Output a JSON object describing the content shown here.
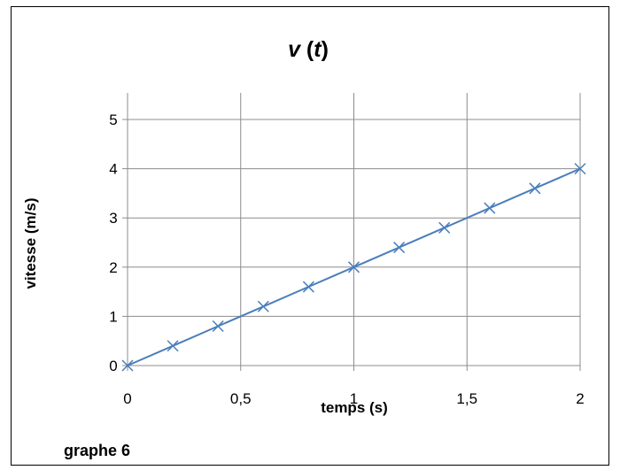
{
  "chart_data": {
    "type": "line",
    "title": "v (t)",
    "title_parts": [
      "v",
      " (",
      "t",
      ")"
    ],
    "xlabel": "temps (s)",
    "ylabel": "vitesse (m/s)",
    "xlim": [
      0,
      2
    ],
    "ylim": [
      0,
      5
    ],
    "x_ticks": [
      0,
      0.5,
      1,
      1.5,
      2
    ],
    "x_tick_labels": [
      "0",
      "0,5",
      "1",
      "1,5",
      "2"
    ],
    "y_ticks": [
      0,
      1,
      2,
      3,
      4,
      5
    ],
    "y_tick_labels": [
      "0",
      "1",
      "2",
      "3",
      "4",
      "5"
    ],
    "grid": true,
    "marker": "x",
    "line_color": "#4A7EBB",
    "series": [
      {
        "x": [
          0,
          0.2,
          0.4,
          0.6,
          0.8,
          1.0,
          1.2,
          1.4,
          1.6,
          1.8,
          2.0
        ],
        "y": [
          0,
          0.4,
          0.8,
          1.2,
          1.6,
          2.0,
          2.4,
          2.8,
          3.2,
          3.6,
          4.0
        ]
      }
    ]
  },
  "caption": "graphe 6"
}
